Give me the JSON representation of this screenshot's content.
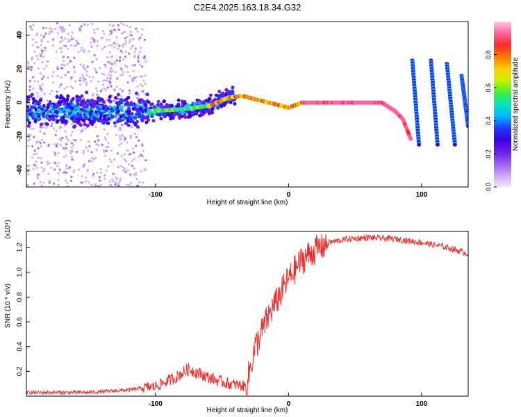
{
  "title": "C2E4.2025.163.18.34.G32",
  "colors": {
    "snr_line": "#e8302e",
    "colormap": [
      "#f2e6ff",
      "#c9a6f5",
      "#9b5cf0",
      "#6a1ee8",
      "#3a00e0",
      "#1f3cff",
      "#00b8ff",
      "#00e5c0",
      "#3cf03c",
      "#c8f000",
      "#ffd000",
      "#ff7a00",
      "#ff2a2a",
      "#ff60a0",
      "#ffc8e6"
    ]
  },
  "chart_data": [
    {
      "type": "heatmap",
      "name": "spectrogram",
      "xlabel": "Height of straight line (km)",
      "ylabel": "Frequency (Hz)",
      "xlim": [
        -197,
        135
      ],
      "ylim": [
        -50,
        48
      ],
      "xticks": [
        -100,
        0,
        100
      ],
      "yticks": [
        -40,
        -20,
        0,
        20,
        40
      ],
      "xtick_labels": [
        "-100",
        "0",
        "100"
      ],
      "ytick_labels": [
        "-40",
        "-20",
        "0",
        "20",
        "40"
      ],
      "colorbar": {
        "label": "Normalized spectral amplitude",
        "range": [
          0,
          1
        ],
        "ticks": [
          0.0,
          0.2,
          0.4,
          0.6,
          0.8
        ],
        "tick_labels": [
          "0.0",
          "0.2",
          "0.4",
          "0.6",
          "0.8"
        ]
      },
      "features": {
        "noise_region_x": [
          -197,
          -108
        ],
        "signal_track": [
          [
            -105,
            -5
          ],
          [
            -80,
            -4
          ],
          [
            -60,
            -2
          ],
          [
            -45,
            3
          ],
          [
            -35,
            4
          ],
          [
            -20,
            1
          ],
          [
            0,
            -3
          ],
          [
            10,
            0
          ],
          [
            40,
            0
          ],
          [
            70,
            0
          ],
          [
            80,
            -5
          ],
          [
            86,
            -10
          ],
          [
            92,
            -22
          ]
        ],
        "aliased_segments": [
          {
            "x_start": 93,
            "y_start": 25,
            "x_end": 98,
            "y_end": -25
          },
          {
            "x_start": 107,
            "y_start": 25,
            "x_end": 112,
            "y_end": -25
          },
          {
            "x_start": 119,
            "y_start": 23,
            "x_end": 125,
            "y_end": -25
          },
          {
            "x_start": 130,
            "y_start": 16,
            "x_end": 135,
            "y_end": -14
          }
        ]
      }
    },
    {
      "type": "line",
      "name": "snr",
      "xlabel": "Height of straight line (km)",
      "ylabel": "SNR (10 * v/v)",
      "y_multiplier_label": "(x10⁴)",
      "xlim": [
        -197,
        135
      ],
      "ylim": [
        0,
        1.33
      ],
      "xticks": [
        -100,
        0,
        100
      ],
      "yticks": [
        0.2,
        0.4,
        0.6,
        0.8,
        1.0,
        1.2
      ],
      "xtick_labels": [
        "-100",
        "0",
        "100"
      ],
      "ytick_labels": [
        "0.2",
        "0.4",
        "0.6",
        "0.8",
        "1.0",
        "1.2"
      ],
      "series": [
        {
          "x": [
            -197,
            -150,
            -120,
            -100,
            -85,
            -75,
            -60,
            -45,
            -32,
            -25,
            -15,
            -5,
            0,
            10,
            20,
            30,
            45,
            60,
            80,
            100,
            120,
            135
          ],
          "y": [
            0.03,
            0.03,
            0.05,
            0.08,
            0.15,
            0.22,
            0.15,
            0.1,
            0.08,
            0.4,
            0.65,
            0.85,
            0.95,
            1.1,
            1.18,
            1.24,
            1.27,
            1.28,
            1.27,
            1.24,
            1.2,
            1.15
          ]
        }
      ]
    }
  ]
}
